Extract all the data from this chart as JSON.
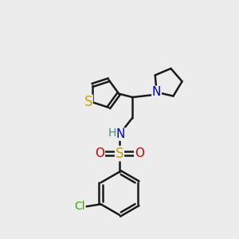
{
  "background_color": "#ececec",
  "bond_color": "#1a1a1a",
  "S_color": "#c8a000",
  "N_color": "#0000cc",
  "O_color": "#cc0000",
  "Cl_color": "#33aa00",
  "H_color": "#4a8888",
  "bond_width": 1.8,
  "fig_size": [
    3.0,
    3.0
  ],
  "dpi": 100,
  "xlim": [
    0,
    10
  ],
  "ylim": [
    0,
    10
  ]
}
